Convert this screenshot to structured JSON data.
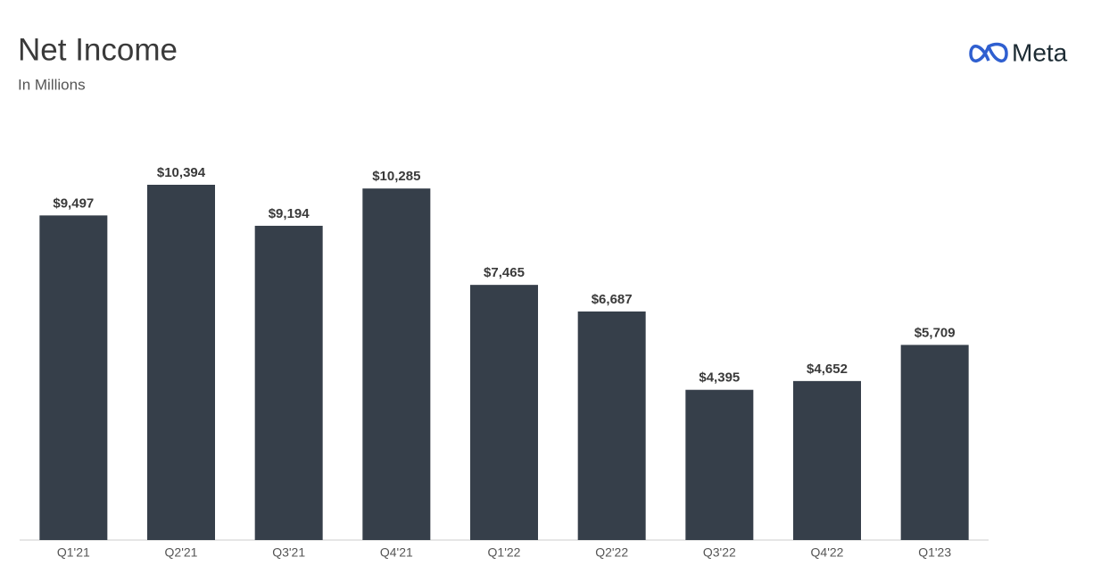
{
  "brand": "Meta",
  "chart_data": {
    "type": "bar",
    "title": "Net Income",
    "subtitle": "In Millions",
    "categories": [
      "Q1'21",
      "Q2'21",
      "Q3'21",
      "Q4'21",
      "Q1'22",
      "Q2'22",
      "Q3'22",
      "Q4'22",
      "Q1'23"
    ],
    "values": [
      9497,
      10394,
      9194,
      10285,
      7465,
      6687,
      4395,
      4652,
      5709
    ],
    "value_labels": [
      "$9,497",
      "$10,394",
      "$9,194",
      "$10,285",
      "$7,465",
      "$6,687",
      "$4,395",
      "$4,652",
      "$5,709"
    ],
    "color": "#363f4a"
  }
}
